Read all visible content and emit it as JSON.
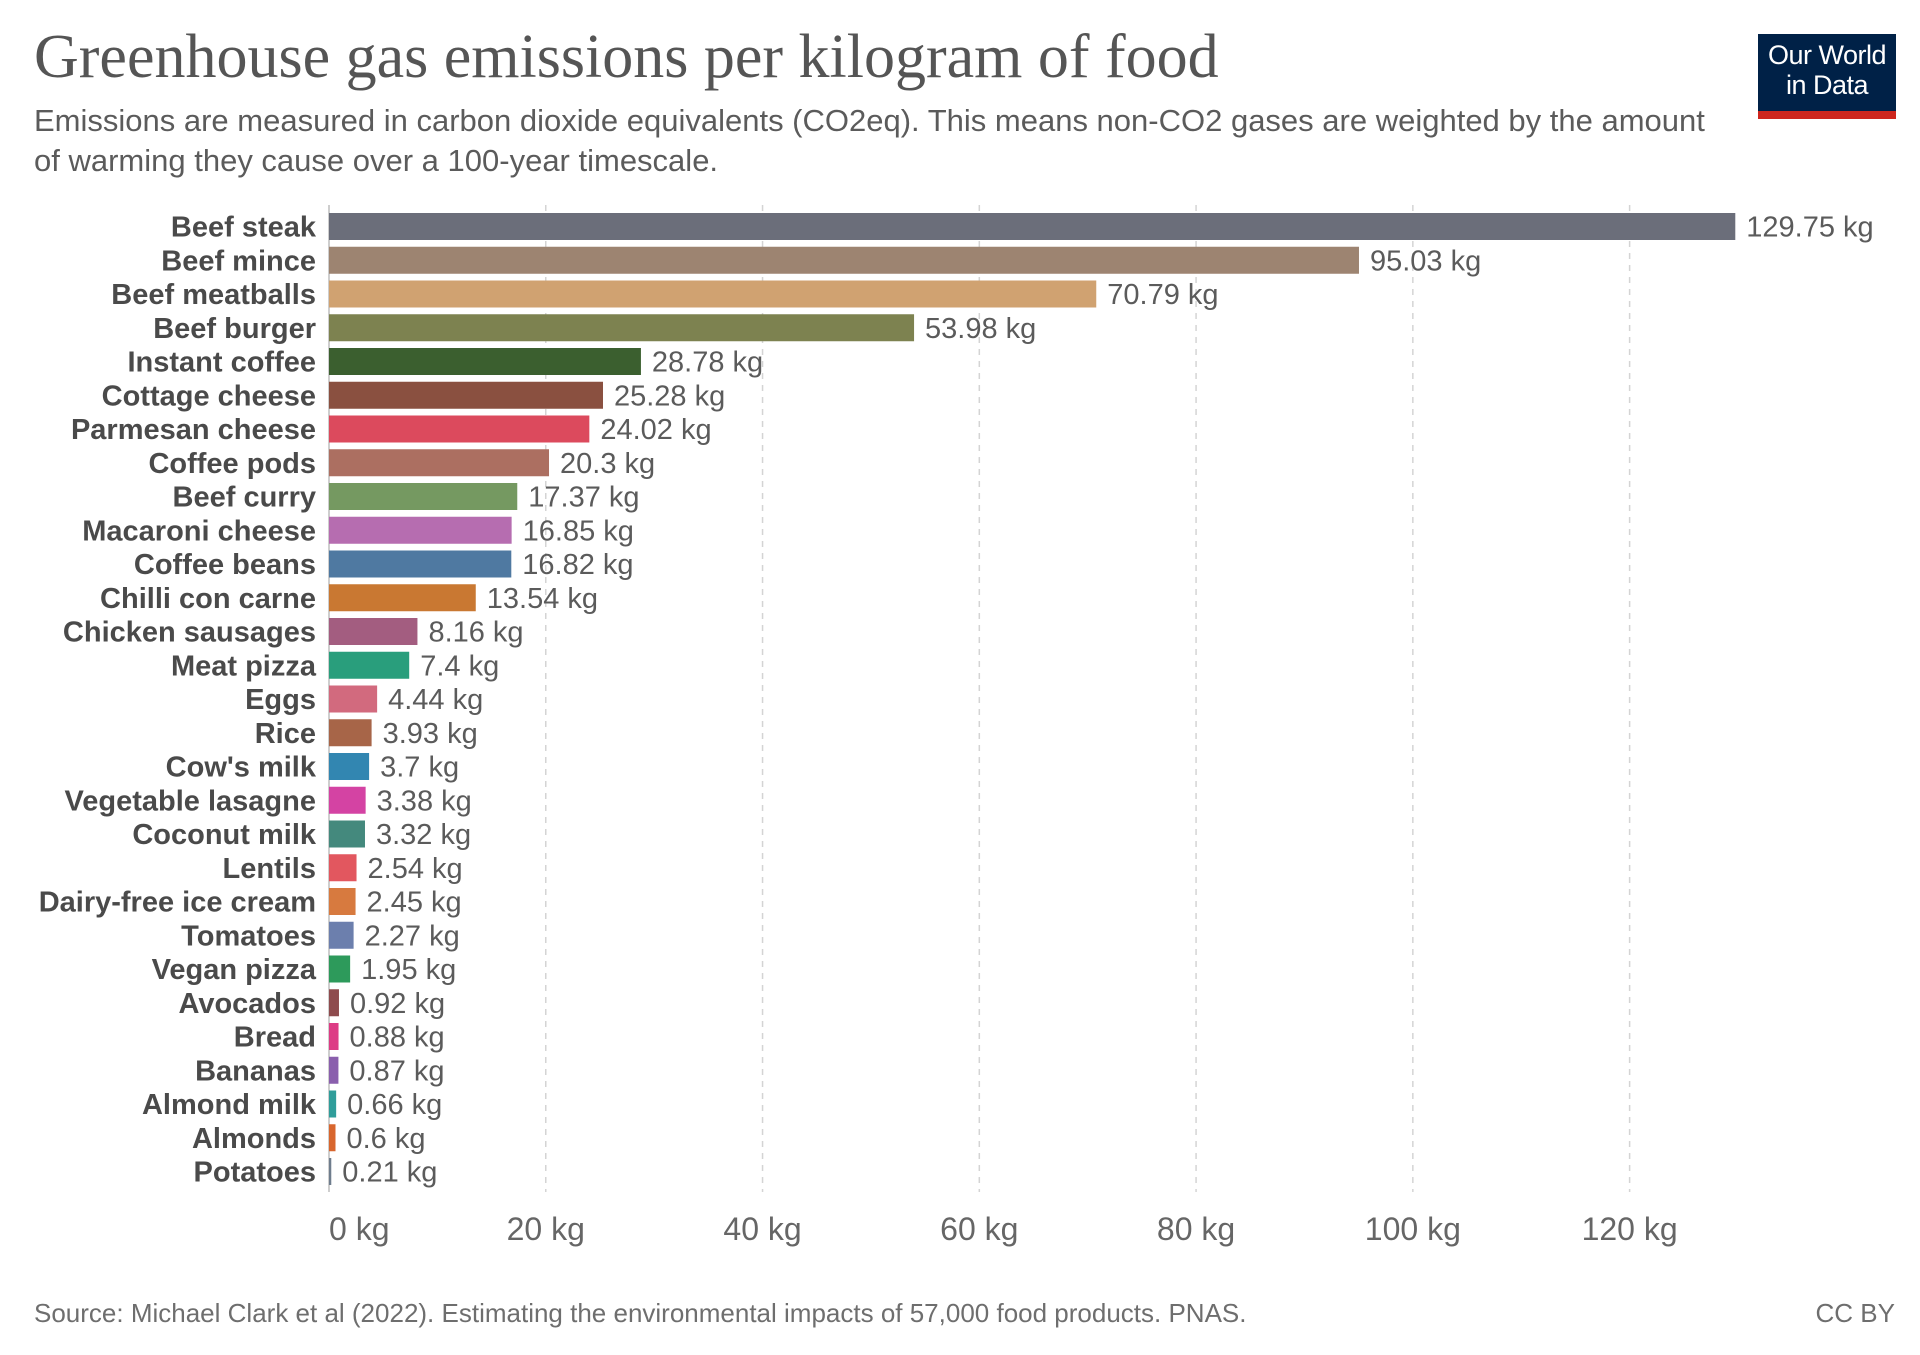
{
  "title": "Greenhouse gas emissions per kilogram of food",
  "subtitle": "Emissions are measured in carbon dioxide equivalents (CO2eq). This means non-CO2 gases are weighted by the amount of warming they cause over a 100-year timescale.",
  "logo": {
    "line1": "Our World",
    "line2": "in Data",
    "bg_color": "#002147",
    "accent_color": "#ce261e"
  },
  "source": "Source: Michael Clark et al (2022). Estimating the environmental impacts of 57,000 food products. PNAS.",
  "license": "CC BY",
  "chart_data": {
    "type": "bar",
    "orientation": "horizontal",
    "unit": "kg",
    "xlim": [
      0,
      130
    ],
    "ticks": [
      0,
      20,
      40,
      60,
      80,
      100,
      120
    ],
    "tick_labels": [
      "0 kg",
      "20 kg",
      "40 kg",
      "60 kg",
      "80 kg",
      "100 kg",
      "120 kg"
    ],
    "grid": "vertical dashed",
    "categories": [
      "Beef steak",
      "Beef mince",
      "Beef meatballs",
      "Beef burger",
      "Instant coffee",
      "Cottage cheese",
      "Parmesan cheese",
      "Coffee pods",
      "Beef curry",
      "Macaroni cheese",
      "Coffee beans",
      "Chilli con carne",
      "Chicken sausages",
      "Meat pizza",
      "Eggs",
      "Rice",
      "Cow's milk",
      "Vegetable lasagne",
      "Coconut milk",
      "Lentils",
      "Dairy-free ice cream",
      "Tomatoes",
      "Vegan pizza",
      "Avocados",
      "Bread",
      "Bananas",
      "Almond milk",
      "Almonds",
      "Potatoes"
    ],
    "values": [
      129.75,
      95.03,
      70.79,
      53.98,
      28.78,
      25.28,
      24.02,
      20.3,
      17.37,
      16.85,
      16.82,
      13.54,
      8.16,
      7.4,
      4.44,
      3.93,
      3.7,
      3.38,
      3.32,
      2.54,
      2.45,
      2.27,
      1.95,
      0.92,
      0.88,
      0.87,
      0.66,
      0.6,
      0.21
    ],
    "value_labels": [
      "129.75 kg",
      "95.03 kg",
      "70.79 kg",
      "53.98 kg",
      "28.78 kg",
      "25.28 kg",
      "24.02 kg",
      "20.3 kg",
      "17.37 kg",
      "16.85 kg",
      "16.82 kg",
      "13.54 kg",
      "8.16 kg",
      "7.4 kg",
      "4.44 kg",
      "3.93 kg",
      "3.7 kg",
      "3.38 kg",
      "3.32 kg",
      "2.54 kg",
      "2.45 kg",
      "2.27 kg",
      "1.95 kg",
      "0.92 kg",
      "0.88 kg",
      "0.87 kg",
      "0.66 kg",
      "0.6 kg",
      "0.21 kg"
    ],
    "colors": [
      "#6b6e7a",
      "#9d8471",
      "#d0a271",
      "#7d8250",
      "#3b5f2f",
      "#8a5040",
      "#dc4a5d",
      "#ac6f61",
      "#759961",
      "#b66db0",
      "#4f79a1",
      "#c97832",
      "#a35d80",
      "#299e7c",
      "#d26a7e",
      "#a76548",
      "#3286b1",
      "#d443a3",
      "#44897d",
      "#e2575f",
      "#d77a3f",
      "#6c7fad",
      "#2d9a5b",
      "#8e4b4d",
      "#dd3c85",
      "#8a5fad",
      "#2f9d9a",
      "#d8662e",
      "#6f7d8d"
    ]
  }
}
